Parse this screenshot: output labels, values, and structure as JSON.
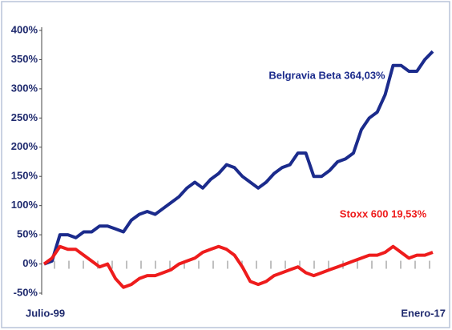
{
  "chart_data": {
    "type": "line",
    "categories": [
      "Julio-99",
      null,
      null,
      null,
      null,
      null,
      null,
      null,
      null,
      null,
      null,
      null,
      null,
      null,
      null,
      null,
      null,
      null,
      null,
      null,
      null,
      null,
      null,
      null,
      null,
      null,
      null,
      null,
      null,
      null,
      null,
      null,
      null,
      null,
      null,
      null,
      null,
      null,
      null,
      null,
      null,
      null,
      null,
      null,
      null,
      null,
      null,
      null,
      null,
      "Enero-17"
    ],
    "series": [
      {
        "name": "Belgravia Beta 364,03%",
        "color": "#1b2b8c",
        "values": [
          0,
          5,
          50,
          50,
          45,
          55,
          55,
          65,
          65,
          60,
          55,
          75,
          85,
          90,
          85,
          95,
          105,
          115,
          130,
          140,
          130,
          145,
          155,
          170,
          165,
          150,
          140,
          130,
          140,
          155,
          165,
          170,
          190,
          190,
          150,
          150,
          160,
          175,
          180,
          190,
          230,
          250,
          260,
          290,
          340,
          340,
          330,
          330,
          350,
          364
        ]
      },
      {
        "name": "Stoxx 600 19,53%",
        "color": "#ee1c1c",
        "values": [
          0,
          10,
          30,
          25,
          25,
          15,
          5,
          -5,
          0,
          -25,
          -40,
          -35,
          -25,
          -20,
          -20,
          -15,
          -10,
          0,
          5,
          10,
          20,
          25,
          30,
          25,
          15,
          -5,
          -30,
          -35,
          -30,
          -20,
          -15,
          -10,
          -5,
          -15,
          -20,
          -15,
          -10,
          -5,
          0,
          5,
          10,
          15,
          15,
          20,
          30,
          20,
          10,
          15,
          15,
          20
        ]
      }
    ],
    "ylim": [
      -50,
      400
    ],
    "yticks": [
      {
        "value": -50,
        "label": "-50%"
      },
      {
        "value": 0,
        "label": "0%"
      },
      {
        "value": 50,
        "label": "50%"
      },
      {
        "value": 100,
        "label": "100%"
      },
      {
        "value": 150,
        "label": "150%"
      },
      {
        "value": 200,
        "label": "200%"
      },
      {
        "value": 250,
        "label": "250%"
      },
      {
        "value": 300,
        "label": "300%"
      },
      {
        "value": 350,
        "label": "350%"
      },
      {
        "value": 400,
        "label": "400%"
      }
    ]
  }
}
